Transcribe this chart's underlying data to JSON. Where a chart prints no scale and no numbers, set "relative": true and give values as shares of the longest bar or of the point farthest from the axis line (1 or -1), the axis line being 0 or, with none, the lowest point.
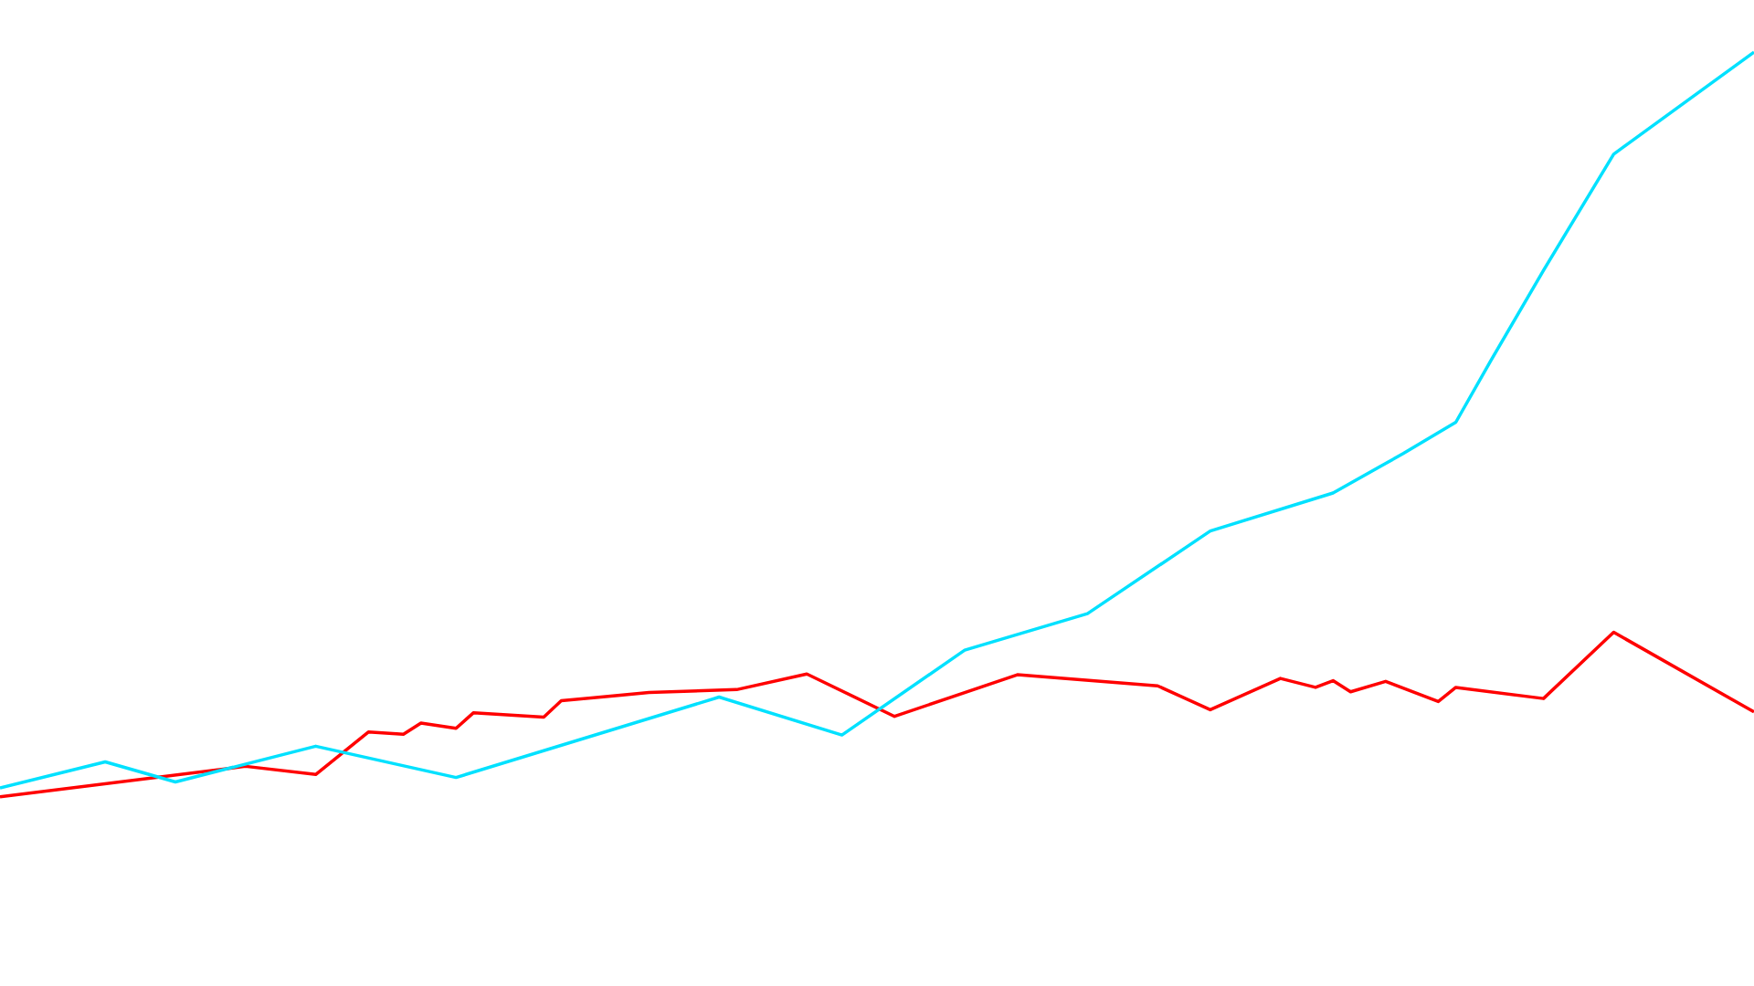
{
  "chart_data": {
    "type": "line",
    "relative": true,
    "tick_labels": false,
    "grid": false,
    "legend": false,
    "marker": "none",
    "line_style": "solid",
    "categories": [
      null,
      null,
      null,
      null,
      null,
      null,
      null,
      null,
      null,
      null,
      null,
      null,
      null,
      null,
      null,
      null,
      null,
      null,
      null,
      null,
      null,
      null,
      null,
      null,
      null,
      null,
      null,
      null,
      null,
      null,
      null,
      null,
      null,
      null,
      null,
      null,
      null,
      null,
      null,
      null,
      null,
      null,
      null,
      null,
      null,
      null,
      null,
      null,
      null,
      null,
      null,
      null,
      null,
      null,
      null,
      null,
      null,
      null,
      null,
      null,
      null,
      null,
      null,
      null,
      null,
      null,
      null,
      null,
      null,
      null,
      null,
      null,
      null,
      null,
      null,
      null,
      null,
      null,
      null,
      null,
      null,
      null,
      null,
      null,
      null,
      null,
      null,
      null,
      null,
      null,
      null,
      null,
      null,
      null,
      null,
      null,
      null,
      null,
      null,
      null,
      null
    ],
    "series": [
      {
        "color": "#00e1ff",
        "values": [
          0.012,
          null,
          null,
          null,
          null,
          null,
          0.047,
          null,
          null,
          null,
          0.02,
          null,
          null,
          null,
          null,
          null,
          null,
          null,
          0.068,
          null,
          null,
          null,
          null,
          null,
          null,
          null,
          0.026,
          null,
          null,
          null,
          null,
          null,
          null,
          null,
          null,
          null,
          null,
          null,
          null,
          null,
          null,
          0.134,
          null,
          null,
          null,
          null,
          null,
          null,
          0.083,
          null,
          null,
          null,
          null,
          null,
          null,
          0.197,
          null,
          null,
          null,
          null,
          null,
          null,
          0.246,
          null,
          null,
          null,
          null,
          null,
          null,
          0.357,
          null,
          null,
          null,
          null,
          null,
          null,
          0.408,
          null,
          null,
          null,
          0.461,
          null,
          null,
          0.503,
          null,
          0.586,
          null,
          null,
          0.707,
          null,
          null,
          null,
          0.863,
          null,
          null,
          null,
          null,
          null,
          null,
          null,
          1
        ]
      },
      {
        "color": "#ff0000",
        "values": [
          0,
          null,
          null,
          null,
          null,
          null,
          null,
          null,
          null,
          null,
          null,
          null,
          null,
          null,
          0.041,
          null,
          null,
          null,
          0.03,
          null,
          null,
          0.087,
          null,
          0.084,
          0.099,
          null,
          0.092,
          0.113,
          null,
          null,
          null,
          0.107,
          0.129,
          null,
          null,
          null,
          null,
          0.14,
          null,
          null,
          null,
          null,
          0.144,
          null,
          null,
          null,
          0.165,
          null,
          null,
          null,
          null,
          0.108,
          null,
          null,
          null,
          null,
          null,
          null,
          0.164,
          null,
          null,
          null,
          null,
          null,
          null,
          null,
          0.149,
          null,
          null,
          0.117,
          null,
          null,
          null,
          0.159,
          null,
          0.147,
          0.156,
          0.141,
          null,
          0.155,
          null,
          null,
          0.128,
          0.147,
          null,
          null,
          null,
          null,
          0.132,
          null,
          null,
          null,
          0.221,
          null,
          null,
          null,
          null,
          null,
          null,
          null,
          0.114
        ]
      }
    ]
  }
}
